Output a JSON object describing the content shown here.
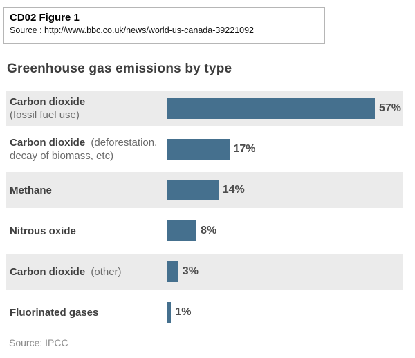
{
  "figure_header": {
    "title": "CD02 Figure 1",
    "source": "Source : http://www.bbc.co.uk/news/world-us-canada-39221092"
  },
  "chart": {
    "title": "Greenhouse gas emissions by type",
    "source": "Source: IPCC"
  },
  "chart_data": {
    "type": "bar",
    "orientation": "horizontal",
    "title": "Greenhouse gas emissions by type",
    "categories": [
      "Carbon dioxide (fossil fuel use)",
      "Carbon dioxide (deforestation, decay of biomass, etc)",
      "Methane",
      "Nitrous oxide",
      "Carbon dioxide (other)",
      "Fluorinated gases"
    ],
    "values": [
      57,
      17,
      14,
      8,
      3,
      1
    ],
    "unit": "%",
    "xlim": [
      0,
      60
    ],
    "grid": false,
    "legend": false,
    "bar_color": "#45708e",
    "row_stripe_color": "#ebebeb",
    "source": "Source: IPCC",
    "rows": [
      {
        "label_bold": "Carbon dioxide",
        "label_note": "(fossil fuel use)",
        "value": 57,
        "value_label": "57%"
      },
      {
        "label_bold": "Carbon dioxide",
        "label_note": "(deforestation, decay of biomass, etc)",
        "value": 17,
        "value_label": "17%"
      },
      {
        "label_bold": "Methane",
        "label_note": "",
        "value": 14,
        "value_label": "14%"
      },
      {
        "label_bold": "Nitrous oxide",
        "label_note": "",
        "value": 8,
        "value_label": "8%"
      },
      {
        "label_bold": "Carbon dioxide",
        "label_note": "(other)",
        "value": 3,
        "value_label": "3%"
      },
      {
        "label_bold": "Fluorinated gases",
        "label_note": "",
        "value": 1,
        "value_label": "1%"
      }
    ]
  }
}
